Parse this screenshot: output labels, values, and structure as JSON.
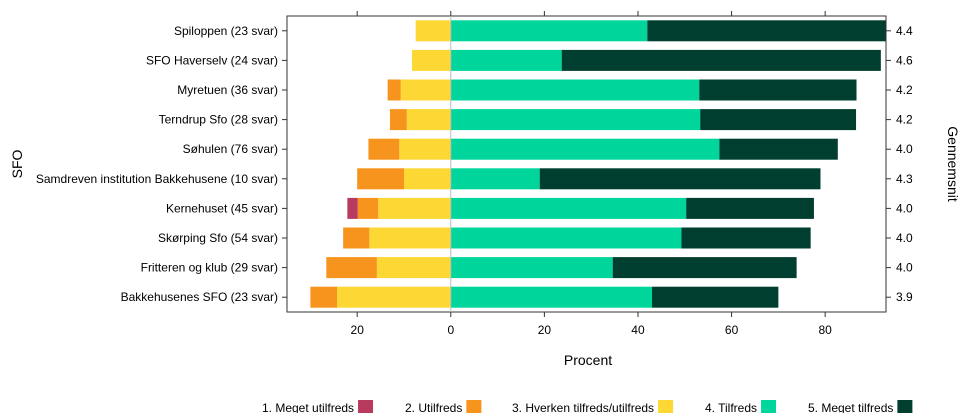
{
  "chart_data": {
    "type": "bar",
    "stacking": "diverging",
    "title": "",
    "xlabel": "Procent",
    "ylabel": "SFO",
    "y2label": "Gennemsnit",
    "xlim": [
      -35,
      93
    ],
    "xticks": [
      -20,
      0,
      20,
      40,
      60,
      80
    ],
    "xtick_labels": [
      "20",
      "0",
      "20",
      "40",
      "60",
      "80"
    ],
    "grid": false,
    "legend_position": "bottom",
    "categories": [
      "Spiloppen (23 svar)",
      "SFO Haverselv (24 svar)",
      "Myretuen (36 svar)",
      "Terndrup Sfo (28 svar)",
      "Søhulen (76 svar)",
      "Samdreven institution Bakkehusene (10 svar)",
      "Kernehuset (45 svar)",
      "Skørping Sfo (54 svar)",
      "Fritteren og klub (29 svar)",
      "Bakkehusenes SFO (23 svar)"
    ],
    "averages": [
      "4.4",
      "4.6",
      "4.2",
      "4.2",
      "4.0",
      "4.3",
      "4.0",
      "4.0",
      "4.0",
      "3.9"
    ],
    "series": [
      {
        "name": "1. Meget utilfreds",
        "color": "#b83a5e",
        "side": "negative",
        "values": [
          0,
          0,
          0,
          0,
          0,
          0,
          2.2,
          0,
          0,
          0
        ]
      },
      {
        "name": "2. Utilfreds",
        "color": "#f7941d",
        "side": "negative",
        "values": [
          0,
          0,
          2.8,
          3.6,
          6.6,
          10,
          4.4,
          5.6,
          10.8,
          5.7
        ]
      },
      {
        "name": "3. Hverken tilfreds/utilfreds",
        "color": "#fdd835",
        "side": "negative",
        "values": [
          7.5,
          8.3,
          10.7,
          9.4,
          11,
          10,
          15.5,
          17.4,
          15.8,
          24.3
        ]
      },
      {
        "name": "4. Tilfreds",
        "color": "#00d69c",
        "side": "positive",
        "values": [
          42,
          23.7,
          53.1,
          53.3,
          57.4,
          19,
          50.3,
          49.3,
          34.6,
          43
        ]
      },
      {
        "name": "5. Meget tilfreds",
        "color": "#003f2f",
        "side": "positive",
        "values": [
          50.9,
          68.2,
          33.6,
          33.3,
          25.3,
          60,
          27.3,
          27.6,
          39.3,
          27
        ]
      }
    ]
  }
}
